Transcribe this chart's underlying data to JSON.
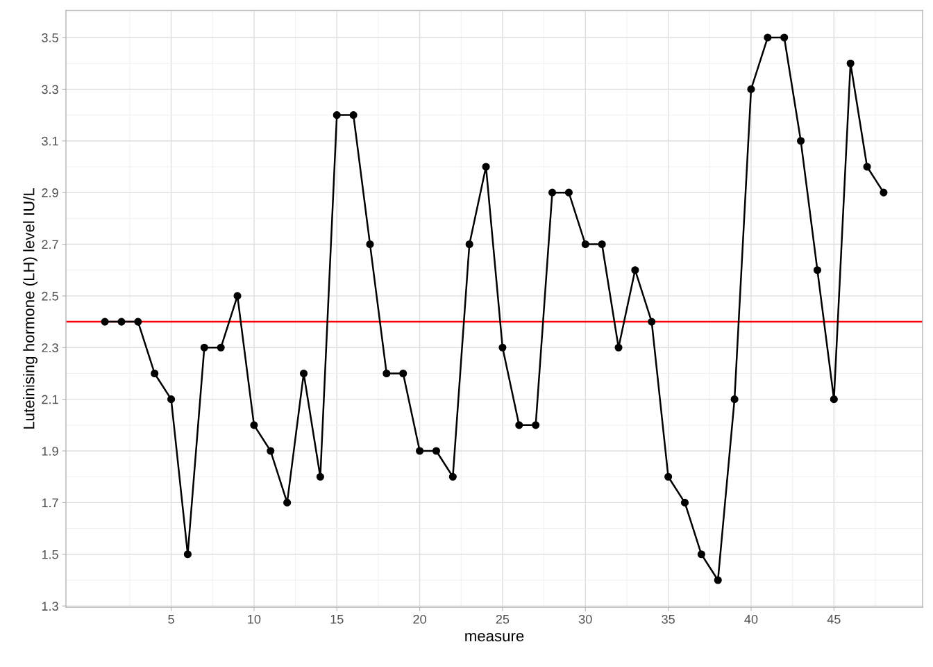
{
  "chart_data": {
    "type": "line",
    "xlabel": "measure",
    "ylabel": "Luteinising hormone (LH) level IU/L",
    "x": [
      1,
      2,
      3,
      4,
      5,
      6,
      7,
      8,
      9,
      10,
      11,
      12,
      13,
      14,
      15,
      16,
      17,
      18,
      19,
      20,
      21,
      22,
      23,
      24,
      25,
      26,
      27,
      28,
      29,
      30,
      31,
      32,
      33,
      34,
      35,
      36,
      37,
      38,
      39,
      40,
      41,
      42,
      43,
      44,
      45,
      46,
      47,
      48
    ],
    "series": [
      {
        "color": "#000000",
        "values": [
          2.4,
          2.4,
          2.4,
          2.2,
          2.1,
          1.5,
          2.3,
          2.3,
          2.5,
          2.0,
          1.9,
          1.7,
          2.2,
          1.8,
          3.2,
          3.2,
          2.7,
          2.2,
          2.2,
          1.9,
          1.9,
          1.8,
          2.7,
          3.0,
          2.3,
          2.0,
          2.0,
          2.9,
          2.9,
          2.7,
          2.7,
          2.3,
          2.6,
          2.4,
          1.8,
          1.7,
          1.5,
          1.4,
          2.1,
          3.3,
          3.5,
          3.5,
          3.1,
          2.6,
          2.1,
          3.4,
          3.0,
          2.9
        ]
      }
    ],
    "xlim": [
      -1.35,
      50.35
    ],
    "xticks": [
      5,
      10,
      15,
      20,
      25,
      30,
      35,
      40,
      45
    ],
    "ylim": [
      1.295,
      3.605
    ],
    "yticks": [
      1.3,
      1.5,
      1.7,
      1.9,
      2.1,
      2.3,
      2.5,
      2.7,
      2.9,
      3.1,
      3.3,
      3.5
    ],
    "ref_lines": [
      {
        "axis": "y",
        "value": 2.4,
        "color": "#ff0000"
      }
    ],
    "grid": true,
    "marker": "circle",
    "line_style": "solid",
    "legend": false
  }
}
